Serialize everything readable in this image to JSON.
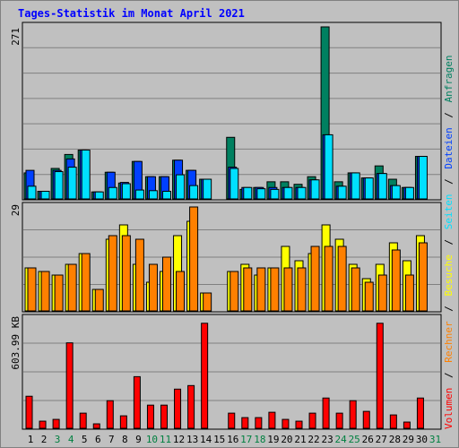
{
  "title": "Tages-Statistik im Monat April 2021",
  "panels": {
    "top_max_label": "271",
    "mid_max_label": "29",
    "bot_max_label": "603.99 KB"
  },
  "legend": {
    "anfragen": "Anfragen",
    "dateien": "Dateien",
    "seiten": "Seiten",
    "besuche": "Besuche",
    "rechner": "Rechner",
    "volumen": "Volumen",
    "sep": "/"
  },
  "colors": {
    "anfragen": "#008060",
    "dateien": "#0040ff",
    "seiten": "#00e0ff",
    "besuche": "#ffff00",
    "rechner": "#ff8000",
    "volumen": "#ff0000",
    "weekend_label": "#008040",
    "weekday_label": "#000000",
    "background": "#c0c0c0",
    "grid": "#808080"
  },
  "chart_data": {
    "type": "bar",
    "title": "Tages-Statistik im Monat April 2021",
    "categories": [
      "1",
      "2",
      "3",
      "4",
      "5",
      "6",
      "7",
      "8",
      "9",
      "10",
      "11",
      "12",
      "13",
      "14",
      "15",
      "16",
      "17",
      "18",
      "19",
      "20",
      "21",
      "22",
      "23",
      "24",
      "25",
      "26",
      "27",
      "28",
      "29",
      "30",
      "31"
    ],
    "weekend_days": [
      3,
      4,
      10,
      11,
      17,
      18,
      24,
      25,
      31
    ],
    "series": [
      {
        "name": "Anfragen",
        "panel": "top",
        "values": [
          41,
          12,
          48,
          70,
          77,
          11,
          42,
          25,
          59,
          35,
          35,
          61,
          45,
          31,
          0,
          97,
          15,
          18,
          27,
          27,
          23,
          35,
          271,
          27,
          41,
          33,
          52,
          31,
          18,
          67,
          0
        ]
      },
      {
        "name": "Dateien",
        "panel": "top",
        "values": [
          45,
          12,
          45,
          63,
          77,
          11,
          42,
          26,
          59,
          35,
          35,
          61,
          45,
          31,
          0,
          50,
          18,
          18,
          18,
          18,
          18,
          30,
          101,
          20,
          41,
          33,
          40,
          21,
          18,
          67,
          0
        ]
      },
      {
        "name": "Seiten",
        "panel": "top",
        "values": [
          20,
          12,
          43,
          50,
          77,
          11,
          18,
          24,
          14,
          13,
          12,
          38,
          21,
          31,
          0,
          48,
          18,
          16,
          15,
          18,
          18,
          30,
          101,
          20,
          41,
          33,
          40,
          21,
          18,
          67,
          0
        ]
      },
      {
        "name": "Besuche",
        "panel": "mid",
        "values": [
          12,
          11,
          10,
          13,
          16,
          6,
          20,
          24,
          13,
          8,
          11,
          21,
          25,
          5,
          0,
          11,
          13,
          10,
          12,
          18,
          14,
          16,
          24,
          20,
          13,
          9,
          13,
          19,
          14,
          21,
          0
        ]
      },
      {
        "name": "Rechner",
        "panel": "mid",
        "values": [
          12,
          11,
          10,
          13,
          16,
          6,
          21,
          21,
          20,
          13,
          15,
          11,
          29,
          5,
          0,
          11,
          12,
          12,
          12,
          12,
          12,
          18,
          18,
          18,
          12,
          8,
          10,
          17,
          10,
          19,
          0
        ]
      },
      {
        "name": "Volumen",
        "panel": "bot",
        "values": [
          180,
          40,
          50,
          480,
          85,
          25,
          155,
          70,
          290,
          130,
          130,
          220,
          240,
          590,
          0,
          85,
          60,
          60,
          90,
          50,
          40,
          85,
          170,
          85,
          155,
          95,
          590,
          75,
          35,
          170,
          0
        ]
      }
    ]
  }
}
